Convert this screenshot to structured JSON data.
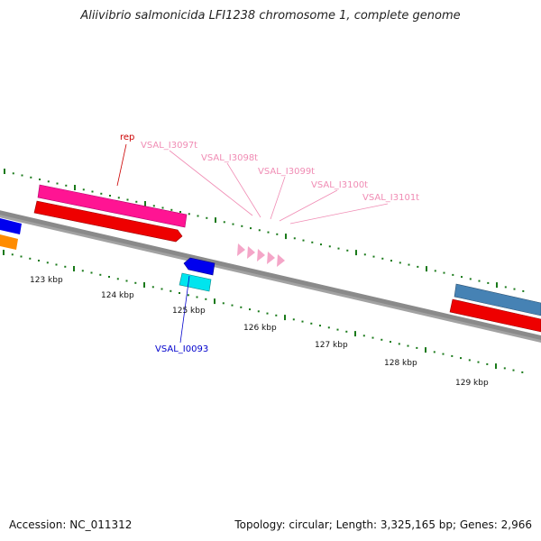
{
  "title": "Aliivibrio salmonicida LFI1238 chromosome 1, complete genome",
  "footer": {
    "accession": "Accession: NC_011312",
    "summary": "Topology: circular; Length: 3,325,165 bp; Genes: 2,966"
  },
  "map": {
    "tick_labels": [
      "123 kbp",
      "124 kbp",
      "125 kbp",
      "126 kbp",
      "127 kbp",
      "128 kbp",
      "129 kbp"
    ],
    "feature_labels": [
      {
        "text": "rep",
        "color": "#cc0000"
      },
      {
        "text": "VSAL_I3097t",
        "color": "#f08cb4"
      },
      {
        "text": "VSAL_I3098t",
        "color": "#f08cb4"
      },
      {
        "text": "VSAL_I3099t",
        "color": "#f08cb4"
      },
      {
        "text": "VSAL_I3100t",
        "color": "#f08cb4"
      },
      {
        "text": "VSAL_I3101t",
        "color": "#f08cb4"
      },
      {
        "text": "VSAL_I0093",
        "color": "#0000cc"
      }
    ],
    "colors": {
      "backbone": "#808080",
      "tick": "#1a7a1a",
      "cds_forward": "#ee0000",
      "gene_forward": "#ff1493",
      "gene_reverse": "#0000ee",
      "cds_reverse": "#00e5ee",
      "orange_feature": "#ff8c00",
      "steelblue_feature": "#4682b4",
      "trna": "#f4a6c8"
    }
  }
}
